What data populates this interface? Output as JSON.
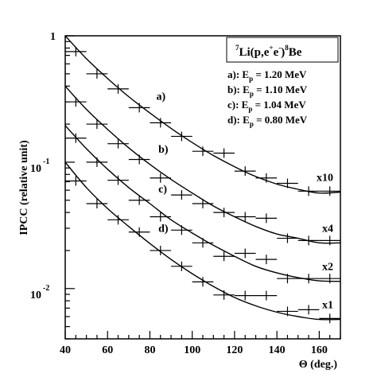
{
  "chart_data": {
    "type": "line",
    "x_axis": {
      "label": "Θ (deg.)",
      "range": [
        40,
        170
      ],
      "ticks": [
        40,
        60,
        80,
        100,
        120,
        140,
        160
      ],
      "tick_labels": [
        "40",
        "60",
        "80",
        "100",
        "120",
        "140",
        "160"
      ]
    },
    "y_axis": {
      "label": "IPCC (relative unit)",
      "scale": "log",
      "range": [
        0.004,
        1
      ],
      "ticks": [
        {
          "value": 1,
          "base": "1",
          "exponent": ""
        },
        {
          "value": 0.1,
          "base": "10",
          "exponent": "-1"
        },
        {
          "value": 0.01,
          "base": "10",
          "exponent": "-2"
        }
      ]
    },
    "legend": {
      "position": "top-right",
      "title": {
        "sup1": "7",
        "main1": "Li(p,e",
        "sup2": "+",
        "main2": "e",
        "sup3": "-",
        "main3": ")",
        "sup4": "8",
        "main4": "Be"
      },
      "entries": [
        {
          "prefix": "a): E",
          "sub": "p",
          "suffix": " = 1.20 MeV"
        },
        {
          "prefix": "b): E",
          "sub": "p",
          "suffix": " = 1.10 MeV"
        },
        {
          "prefix": "c): E",
          "sub": "p",
          "suffix": " = 1.04 MeV"
        },
        {
          "prefix": "d): E",
          "sub": "p",
          "suffix": " = 0.80 MeV"
        }
      ]
    },
    "series": [
      {
        "name": "a)",
        "scale_label": "x10",
        "label_x": 74,
        "data": [],
        "points": [
          {
            "x": 45,
            "y": 0.75
          },
          {
            "x": 55,
            "y": 0.5
          },
          {
            "x": 65,
            "y": 0.38
          },
          {
            "x": 75,
            "y": 0.27
          },
          {
            "x": 85,
            "y": 0.205
          },
          {
            "x": 95,
            "y": 0.16
          },
          {
            "x": 105,
            "y": 0.122
          },
          {
            "x": 115,
            "y": 0.118
          },
          {
            "x": 125,
            "y": 0.085
          },
          {
            "x": 135,
            "y": 0.075
          },
          {
            "x": 145,
            "y": 0.068
          },
          {
            "x": 155,
            "y": 0.059
          },
          {
            "x": 165,
            "y": 0.059
          }
        ],
        "curve": [
          {
            "x": 40,
            "y": 1.0
          },
          {
            "x": 50,
            "y": 0.66
          },
          {
            "x": 60,
            "y": 0.46
          },
          {
            "x": 70,
            "y": 0.33
          },
          {
            "x": 80,
            "y": 0.245
          },
          {
            "x": 90,
            "y": 0.185
          },
          {
            "x": 100,
            "y": 0.143
          },
          {
            "x": 110,
            "y": 0.113
          },
          {
            "x": 120,
            "y": 0.092
          },
          {
            "x": 130,
            "y": 0.077
          },
          {
            "x": 140,
            "y": 0.067
          },
          {
            "x": 150,
            "y": 0.061
          },
          {
            "x": 160,
            "y": 0.057
          },
          {
            "x": 170,
            "y": 0.058
          }
        ]
      },
      {
        "name": "b)",
        "scale_label": "x4",
        "label_x": 75,
        "points": [
          {
            "x": 45,
            "y": 0.3
          },
          {
            "x": 55,
            "y": 0.2
          },
          {
            "x": 65,
            "y": 0.14
          },
          {
            "x": 75,
            "y": 0.105
          },
          {
            "x": 85,
            "y": 0.075
          },
          {
            "x": 95,
            "y": 0.055
          },
          {
            "x": 105,
            "y": 0.047
          },
          {
            "x": 115,
            "y": 0.04
          },
          {
            "x": 125,
            "y": 0.037
          },
          {
            "x": 135,
            "y": 0.036
          },
          {
            "x": 145,
            "y": 0.025
          },
          {
            "x": 155,
            "y": 0.024
          },
          {
            "x": 165,
            "y": 0.024
          }
        ],
        "curve": [
          {
            "x": 40,
            "y": 0.4
          },
          {
            "x": 50,
            "y": 0.262
          },
          {
            "x": 60,
            "y": 0.182
          },
          {
            "x": 70,
            "y": 0.13
          },
          {
            "x": 80,
            "y": 0.096
          },
          {
            "x": 90,
            "y": 0.073
          },
          {
            "x": 100,
            "y": 0.057
          },
          {
            "x": 110,
            "y": 0.045
          },
          {
            "x": 120,
            "y": 0.037
          },
          {
            "x": 130,
            "y": 0.031
          },
          {
            "x": 140,
            "y": 0.027
          },
          {
            "x": 150,
            "y": 0.025
          },
          {
            "x": 160,
            "y": 0.023
          },
          {
            "x": 170,
            "y": 0.023
          }
        ]
      },
      {
        "name": "c)",
        "scale_label": "x2",
        "label_x": 75,
        "points": [
          {
            "x": 45,
            "y": 0.155
          },
          {
            "x": 55,
            "y": 0.1
          },
          {
            "x": 65,
            "y": 0.072
          },
          {
            "x": 75,
            "y": 0.05
          },
          {
            "x": 85,
            "y": 0.037
          },
          {
            "x": 95,
            "y": 0.029
          },
          {
            "x": 105,
            "y": 0.023
          },
          {
            "x": 115,
            "y": 0.018
          },
          {
            "x": 125,
            "y": 0.019
          },
          {
            "x": 135,
            "y": 0.017
          },
          {
            "x": 145,
            "y": 0.012
          },
          {
            "x": 155,
            "y": 0.012
          },
          {
            "x": 165,
            "y": 0.012
          }
        ],
        "curve": [
          {
            "x": 40,
            "y": 0.195
          },
          {
            "x": 50,
            "y": 0.128
          },
          {
            "x": 60,
            "y": 0.088
          },
          {
            "x": 70,
            "y": 0.063
          },
          {
            "x": 80,
            "y": 0.047
          },
          {
            "x": 90,
            "y": 0.035
          },
          {
            "x": 100,
            "y": 0.0275
          },
          {
            "x": 110,
            "y": 0.022
          },
          {
            "x": 120,
            "y": 0.018
          },
          {
            "x": 130,
            "y": 0.015
          },
          {
            "x": 140,
            "y": 0.0133
          },
          {
            "x": 150,
            "y": 0.0122
          },
          {
            "x": 160,
            "y": 0.0115
          },
          {
            "x": 170,
            "y": 0.0114
          }
        ]
      },
      {
        "name": "d)",
        "scale_label": "x1",
        "label_x": 75,
        "points": [
          {
            "x": 45,
            "y": 0.071
          },
          {
            "x": 55,
            "y": 0.047
          },
          {
            "x": 65,
            "y": 0.035
          },
          {
            "x": 75,
            "y": 0.028
          },
          {
            "x": 85,
            "y": 0.02
          },
          {
            "x": 95,
            "y": 0.015
          },
          {
            "x": 105,
            "y": 0.0113
          },
          {
            "x": 115,
            "y": 0.0089
          },
          {
            "x": 125,
            "y": 0.0088
          },
          {
            "x": 135,
            "y": 0.0088
          },
          {
            "x": 145,
            "y": 0.0066
          },
          {
            "x": 155,
            "y": 0.0068
          },
          {
            "x": 165,
            "y": 0.0058
          }
        ],
        "curve": [
          {
            "x": 40,
            "y": 0.1
          },
          {
            "x": 50,
            "y": 0.063
          },
          {
            "x": 60,
            "y": 0.043
          },
          {
            "x": 70,
            "y": 0.031
          },
          {
            "x": 80,
            "y": 0.0227
          },
          {
            "x": 90,
            "y": 0.017
          },
          {
            "x": 100,
            "y": 0.0131
          },
          {
            "x": 110,
            "y": 0.0104
          },
          {
            "x": 120,
            "y": 0.0085
          },
          {
            "x": 130,
            "y": 0.0073
          },
          {
            "x": 140,
            "y": 0.0065
          },
          {
            "x": 150,
            "y": 0.006
          },
          {
            "x": 160,
            "y": 0.0057
          },
          {
            "x": 170,
            "y": 0.0057
          }
        ]
      }
    ],
    "x_error_halfwidth": 5,
    "grid": false
  }
}
